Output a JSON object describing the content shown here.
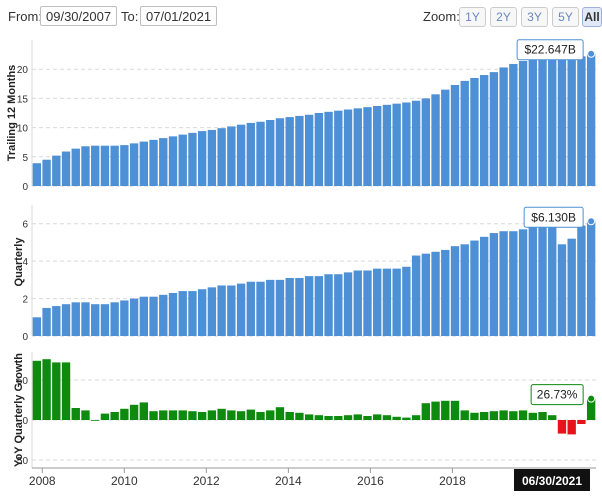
{
  "controls": {
    "from_label": "From:",
    "from_value": "09/30/2007",
    "to_label": "To:",
    "to_value": "07/01/2021",
    "zoom_label": "Zoom:",
    "zoom_buttons": [
      "1Y",
      "2Y",
      "3Y",
      "5Y",
      "All"
    ],
    "active_zoom": "All"
  },
  "chart_data": [
    {
      "type": "bar",
      "ylabel": "Trailing 12 Months",
      "ylim": [
        0,
        25
      ],
      "yticks": [
        0,
        5,
        10,
        15,
        20
      ],
      "grid": true,
      "color": "#4e90d6",
      "last_value_label": "$22.647B",
      "quarters_start": "2007-Q4",
      "values": [
        3.9,
        4.5,
        5.2,
        5.9,
        6.4,
        6.8,
        6.9,
        6.9,
        6.9,
        7.0,
        7.3,
        7.6,
        7.9,
        8.2,
        8.5,
        8.8,
        9.1,
        9.4,
        9.6,
        9.9,
        10.2,
        10.5,
        10.8,
        11.0,
        11.3,
        11.6,
        11.8,
        12.0,
        12.2,
        12.5,
        12.7,
        12.9,
        13.1,
        13.3,
        13.5,
        13.7,
        13.9,
        14.1,
        14.3,
        14.6,
        15.0,
        15.7,
        16.5,
        17.3,
        18.0,
        18.5,
        19.0,
        19.5,
        20.3,
        20.9,
        21.4,
        21.8,
        22.3,
        22.6,
        22.4,
        22.2,
        22.2,
        22.647
      ]
    },
    {
      "type": "bar",
      "ylabel": "Quarterly",
      "ylim": [
        0,
        7
      ],
      "yticks": [
        0,
        2,
        4,
        6
      ],
      "grid": true,
      "color": "#4e90d6",
      "last_value_label": "$6.130B",
      "quarters_start": "2007-Q4",
      "values": [
        1.0,
        1.5,
        1.6,
        1.7,
        1.8,
        1.8,
        1.7,
        1.7,
        1.8,
        1.9,
        2.0,
        2.1,
        2.1,
        2.2,
        2.3,
        2.4,
        2.4,
        2.5,
        2.6,
        2.7,
        2.7,
        2.8,
        2.9,
        2.9,
        3.0,
        3.0,
        3.1,
        3.1,
        3.2,
        3.2,
        3.3,
        3.3,
        3.4,
        3.5,
        3.5,
        3.6,
        3.6,
        3.6,
        3.7,
        4.3,
        4.4,
        4.5,
        4.6,
        4.8,
        4.9,
        5.1,
        5.3,
        5.5,
        5.6,
        5.6,
        5.7,
        5.9,
        6.1,
        6.0,
        4.9,
        5.2,
        5.9,
        6.13
      ]
    },
    {
      "type": "bar",
      "ylabel": "YoY Quarterly Growth",
      "ylim": [
        -60,
        85
      ],
      "yticks": [
        -50,
        0,
        50
      ],
      "grid": true,
      "positive_color": "#0e8a0e",
      "negative_color": "#e8121a",
      "last_value_label": "26.73%",
      "quarters_start": "2007-Q4",
      "values": [
        74,
        76,
        72,
        72,
        15,
        12,
        0,
        8,
        10,
        14,
        19,
        22,
        11,
        12,
        12,
        12,
        11,
        10,
        12,
        14,
        12,
        11,
        13,
        10,
        12,
        16,
        10,
        9,
        7,
        6,
        5,
        5,
        6,
        7,
        5,
        7,
        6,
        4,
        3,
        6,
        21,
        23,
        24,
        24,
        12,
        9,
        10,
        11,
        12,
        11,
        12,
        9,
        10,
        6,
        -17,
        -18,
        -5,
        26.73
      ],
      "xtick_labels": [
        "2008",
        "2010",
        "2012",
        "2014",
        "2016",
        "2018"
      ],
      "xtick_years": [
        2008,
        2010,
        2012,
        2014,
        2016,
        2018
      ],
      "x_range_years": [
        2007.75,
        2021.5
      ],
      "navigator_label": "06/30/2021"
    }
  ]
}
